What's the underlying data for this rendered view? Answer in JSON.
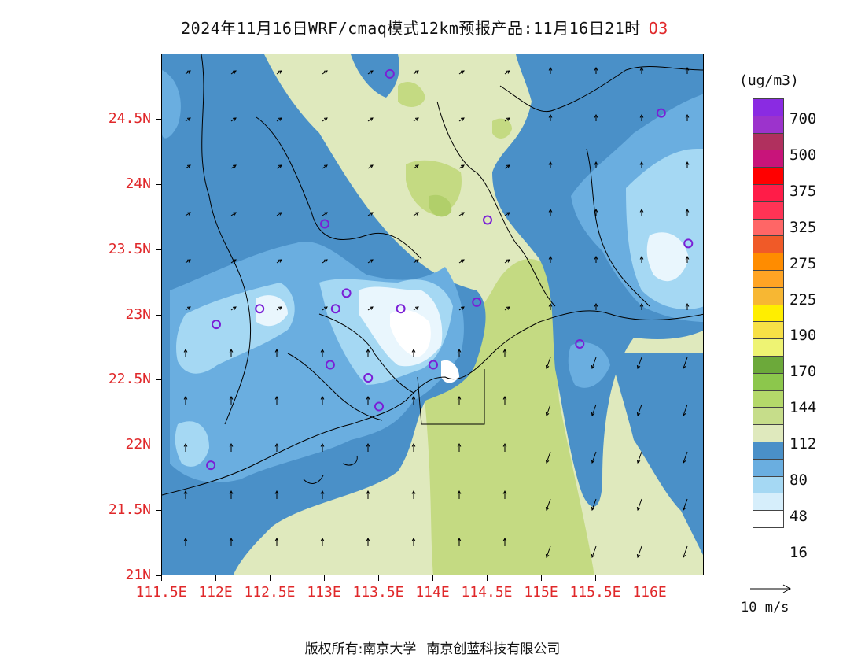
{
  "title": {
    "main": "2024年11月16日WRF/cmaq模式12km预报产品:11月16日21时",
    "species": "O3"
  },
  "axes": {
    "lat_labels": [
      "24.5N",
      "24N",
      "23.5N",
      "23N",
      "22.5N",
      "22N",
      "21.5N",
      "21N"
    ],
    "lon_labels": [
      "111.5E",
      "112E",
      "112.5E",
      "113E",
      "113.5E",
      "114E",
      "114.5E",
      "115E",
      "115.5E",
      "116E"
    ]
  },
  "colorbar": {
    "unit": "(ug/m3)",
    "colors": [
      "#8a2be2",
      "#9c33cc",
      "#b0305e",
      "#c8147a",
      "#ff0000",
      "#ff1c48",
      "#ff3355",
      "#ff6666",
      "#f05a28",
      "#ff8c00",
      "#ffa424",
      "#f7b733",
      "#ffee00",
      "#f7e046",
      "#eef373",
      "#6ca93a",
      "#8cc74c",
      "#b4d86a",
      "#c6dd8a",
      "#dfe9bd",
      "#4a90c8",
      "#6aaee0",
      "#a5d8f3",
      "#d6eefb",
      "#ffffff"
    ],
    "labels": [
      "700",
      "500",
      "375",
      "325",
      "275",
      "225",
      "190",
      "170",
      "144",
      "112",
      "80",
      "48",
      "16"
    ]
  },
  "legend": {
    "vector_label": "10 m/s",
    "site_marker": "monitoring-site-circle"
  },
  "map": {
    "region": "Pearl River Delta / Guangdong",
    "lat_range": [
      21,
      25
    ],
    "lon_range": [
      111.5,
      116.5
    ],
    "sites": [
      {
        "lon": 113.6,
        "lat": 24.85
      },
      {
        "lon": 116.1,
        "lat": 24.55
      },
      {
        "lon": 113.0,
        "lat": 23.7
      },
      {
        "lon": 114.5,
        "lat": 23.73
      },
      {
        "lon": 116.35,
        "lat": 23.55
      },
      {
        "lon": 112.4,
        "lat": 23.05
      },
      {
        "lon": 112.0,
        "lat": 22.93
      },
      {
        "lon": 113.1,
        "lat": 23.05
      },
      {
        "lon": 113.2,
        "lat": 23.17
      },
      {
        "lon": 113.7,
        "lat": 23.05
      },
      {
        "lon": 114.4,
        "lat": 23.1
      },
      {
        "lon": 115.35,
        "lat": 22.78
      },
      {
        "lon": 113.05,
        "lat": 22.62
      },
      {
        "lon": 113.4,
        "lat": 22.52
      },
      {
        "lon": 114.0,
        "lat": 22.62
      },
      {
        "lon": 113.5,
        "lat": 22.3
      },
      {
        "lon": 111.95,
        "lat": 21.85
      }
    ]
  },
  "copyright": {
    "prefix": "版权所有:",
    "org1": "南京大学",
    "org2": "南京创蓝科技有限公司"
  }
}
